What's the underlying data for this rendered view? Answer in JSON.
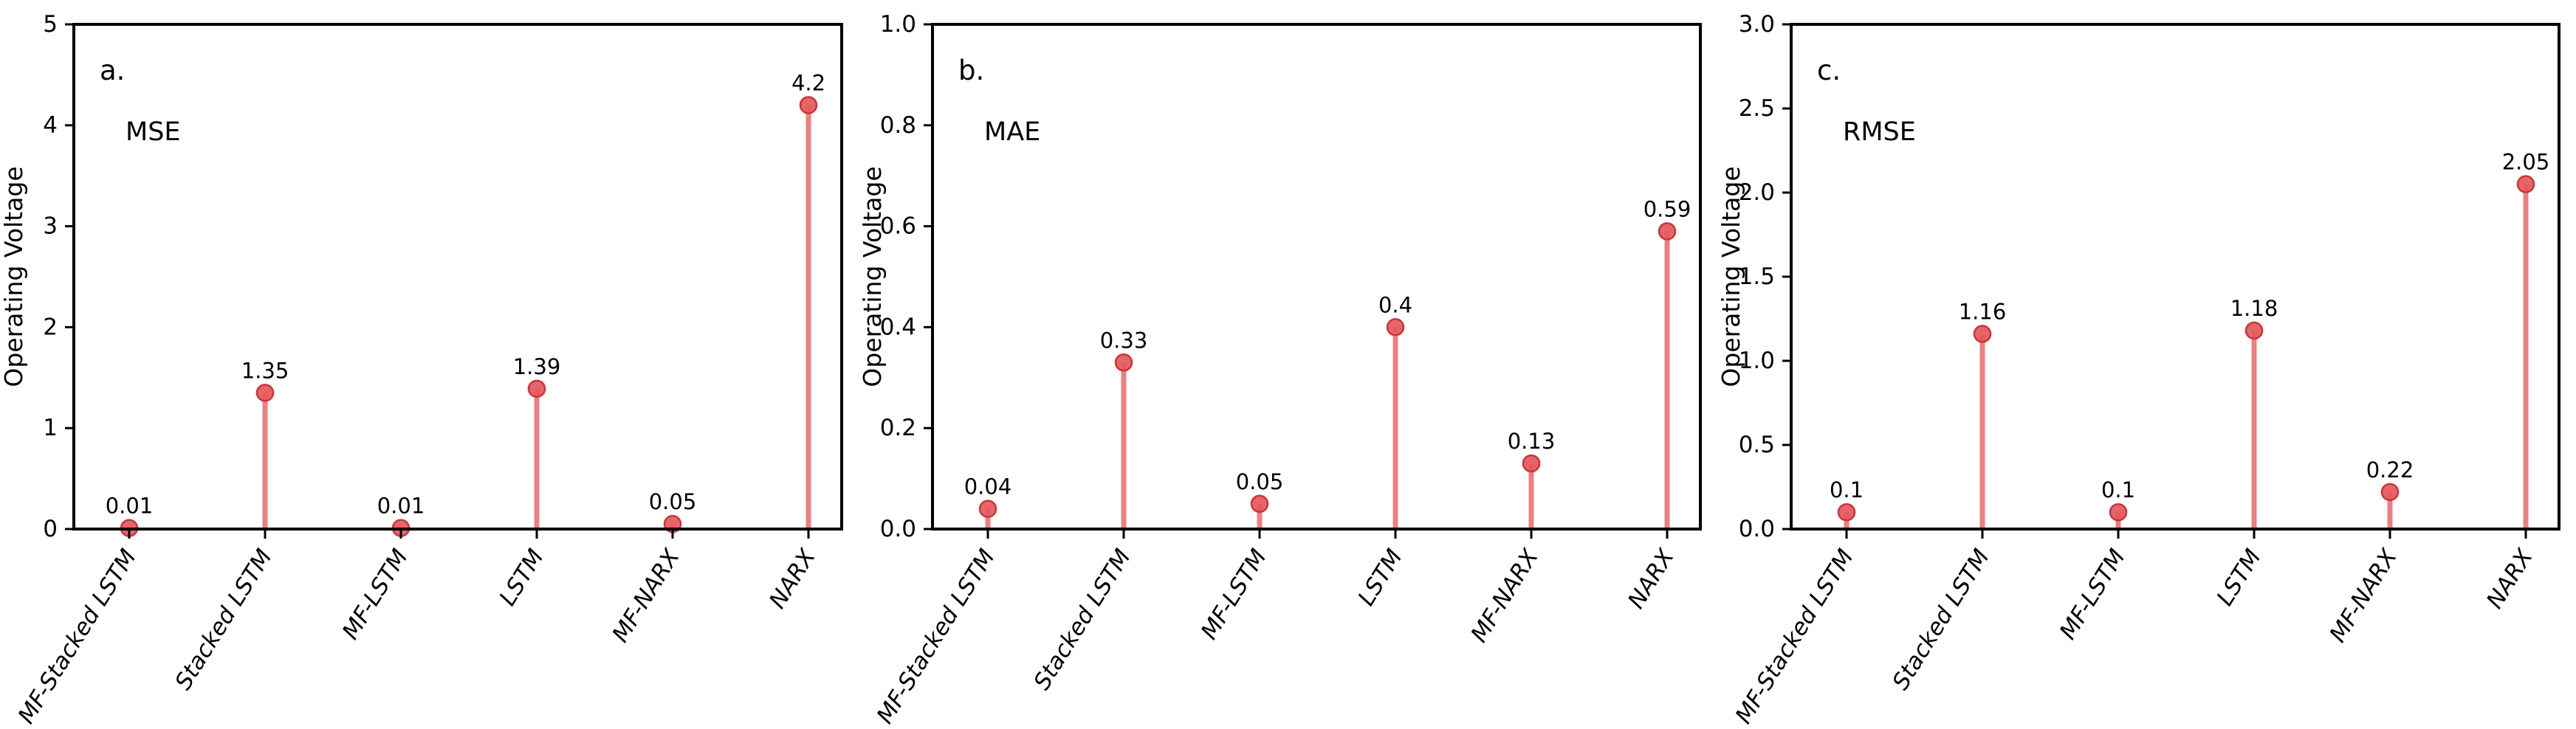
{
  "figure": {
    "background": "#ffffff",
    "description": "Three stem-plot subplots comparing error metrics (MSE, MAE, RMSE) of six forecasting models for Operating Voltage"
  },
  "colors": {
    "stem": "#ea696c",
    "marker_fill": "#e4585b",
    "marker_edge": "#cd3438",
    "axis": "#000000",
    "text": "#000000"
  },
  "chart_data": [
    {
      "type": "stem",
      "panel_label": "a.",
      "title": "MSE",
      "ylabel": "Operating Voltage",
      "categories": [
        "MF-Stacked LSTM",
        "Stacked LSTM",
        "MF-LSTM",
        "LSTM",
        "MF-NARX",
        "NARX"
      ],
      "values": [
        0.01,
        1.35,
        0.01,
        1.39,
        0.05,
        4.2
      ],
      "value_labels": [
        "0.01",
        "1.35",
        "0.01",
        "1.39",
        "0.05",
        "4.2"
      ],
      "ylim": [
        0,
        5
      ],
      "yticks": [
        0,
        1,
        2,
        3,
        4,
        5
      ],
      "ytick_labels": [
        "0",
        "1",
        "2",
        "3",
        "4",
        "5"
      ],
      "grid": false,
      "legend": null
    },
    {
      "type": "stem",
      "panel_label": "b.",
      "title": "MAE",
      "ylabel": "Operating Voltage",
      "categories": [
        "MF-Stacked LSTM",
        "Stacked LSTM",
        "MF-LSTM",
        "LSTM",
        "MF-NARX",
        "NARX"
      ],
      "values": [
        0.04,
        0.33,
        0.05,
        0.4,
        0.13,
        0.59
      ],
      "value_labels": [
        "0.04",
        "0.33",
        "0.05",
        "0.4",
        "0.13",
        "0.59"
      ],
      "ylim": [
        0,
        1
      ],
      "yticks": [
        0.0,
        0.2,
        0.4,
        0.6,
        0.8,
        1.0
      ],
      "ytick_labels": [
        "0.0",
        "0.2",
        "0.4",
        "0.6",
        "0.8",
        "1.0"
      ],
      "grid": false,
      "legend": null
    },
    {
      "type": "stem",
      "panel_label": "c.",
      "title": "RMSE",
      "ylabel": "Operating Voltage",
      "categories": [
        "MF-Stacked LSTM",
        "Stacked LSTM",
        "MF-LSTM",
        "LSTM",
        "MF-NARX",
        "NARX"
      ],
      "values": [
        0.1,
        1.16,
        0.1,
        1.18,
        0.22,
        2.05
      ],
      "value_labels": [
        "0.1",
        "1.16",
        "0.1",
        "1.18",
        "0.22",
        "2.05"
      ],
      "ylim": [
        0,
        3
      ],
      "yticks": [
        0.0,
        0.5,
        1.0,
        1.5,
        2.0,
        2.5,
        3.0
      ],
      "ytick_labels": [
        "0.0",
        "0.5",
        "1.0",
        "1.5",
        "2.0",
        "2.5",
        "3.0"
      ],
      "grid": false,
      "legend": null
    }
  ]
}
